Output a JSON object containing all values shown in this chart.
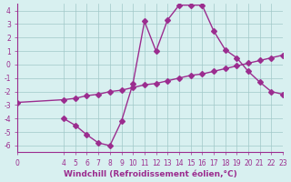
{
  "x_curve1": [
    4,
    5,
    6,
    7,
    8,
    9,
    10,
    11,
    12,
    13,
    14,
    15,
    16,
    17,
    18,
    19,
    20,
    21,
    22,
    23
  ],
  "y_curve1": [
    -4.0,
    -4.5,
    -5.2,
    -5.8,
    -6.0,
    -4.2,
    -1.4,
    3.2,
    1.0,
    3.3,
    4.4,
    4.4,
    4.4,
    2.5,
    1.1,
    0.5,
    -0.5,
    -1.3,
    -2.0,
    -2.2
  ],
  "x_curve2": [
    0,
    4,
    5,
    6,
    7,
    8,
    9,
    10,
    11,
    12,
    13,
    14,
    15,
    16,
    17,
    18,
    19,
    20,
    21,
    22,
    23
  ],
  "y_curve2": [
    -2.8,
    -2.6,
    -2.5,
    -2.3,
    -2.2,
    -2.0,
    -1.9,
    -1.7,
    -1.5,
    -1.4,
    -1.2,
    -1.0,
    -0.8,
    -0.7,
    -0.5,
    -0.3,
    -0.1,
    0.1,
    0.3,
    0.5,
    0.7
  ],
  "line_color": "#9b2d8f",
  "bg_color": "#d8f0f0",
  "grid_color": "#a0c8c8",
  "xlabel": "Windchill (Refroidissement éolien,°C)",
  "xlim": [
    0,
    23
  ],
  "ylim": [
    -6.5,
    4.5
  ],
  "yticks": [
    -6,
    -5,
    -4,
    -3,
    -2,
    -1,
    0,
    1,
    2,
    3,
    4
  ],
  "xticks": [
    0,
    4,
    5,
    6,
    7,
    8,
    9,
    10,
    11,
    12,
    13,
    14,
    15,
    16,
    17,
    18,
    19,
    20,
    21,
    22,
    23
  ],
  "marker": "D",
  "marker_size": 3,
  "line_width": 1.0,
  "label_fontsize": 6.5,
  "tick_fontsize": 5.5
}
